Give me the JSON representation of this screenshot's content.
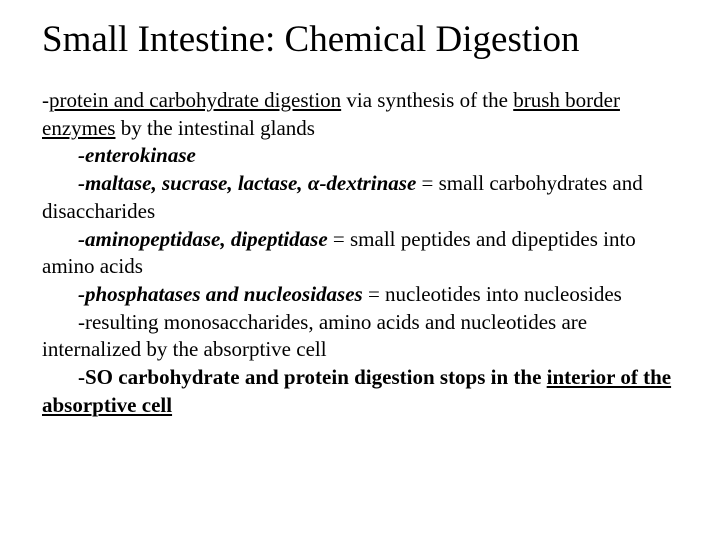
{
  "title": "Small Intestine: Chemical Digestion",
  "line1a": "-",
  "line1b": "protein and carbohydrate digestion",
  "line1c": " via synthesis of the ",
  "line1d": "brush border enzymes",
  "line1e": " by the intestinal glands",
  "enz1": "-enterokinase",
  "enz2a": "-maltase, sucrase, lactase, ",
  "enz2alpha": "α",
  "enz2b": "-dextrinase",
  "enz2c": " = small carbohydrates and disaccharides",
  "enz3a": "-aminopeptidase, dipeptidase",
  "enz3b": " = small peptides and dipeptides into amino acids",
  "enz4a": "-phosphatases and nucleosidases ",
  "enz4b": " = nucleotides into nucleosides",
  "res": "-resulting monosaccharides, amino acids and nucleotides are internalized by the absorptive cell",
  "so_a": "-SO carbohydrate and protein digestion stops in the ",
  "so_b": "interior of the absorptive cell",
  "colors": {
    "text": "#000000",
    "background": "#ffffff"
  },
  "fonts": {
    "title_size": 37,
    "body_size": 21,
    "family": "Times New Roman"
  }
}
